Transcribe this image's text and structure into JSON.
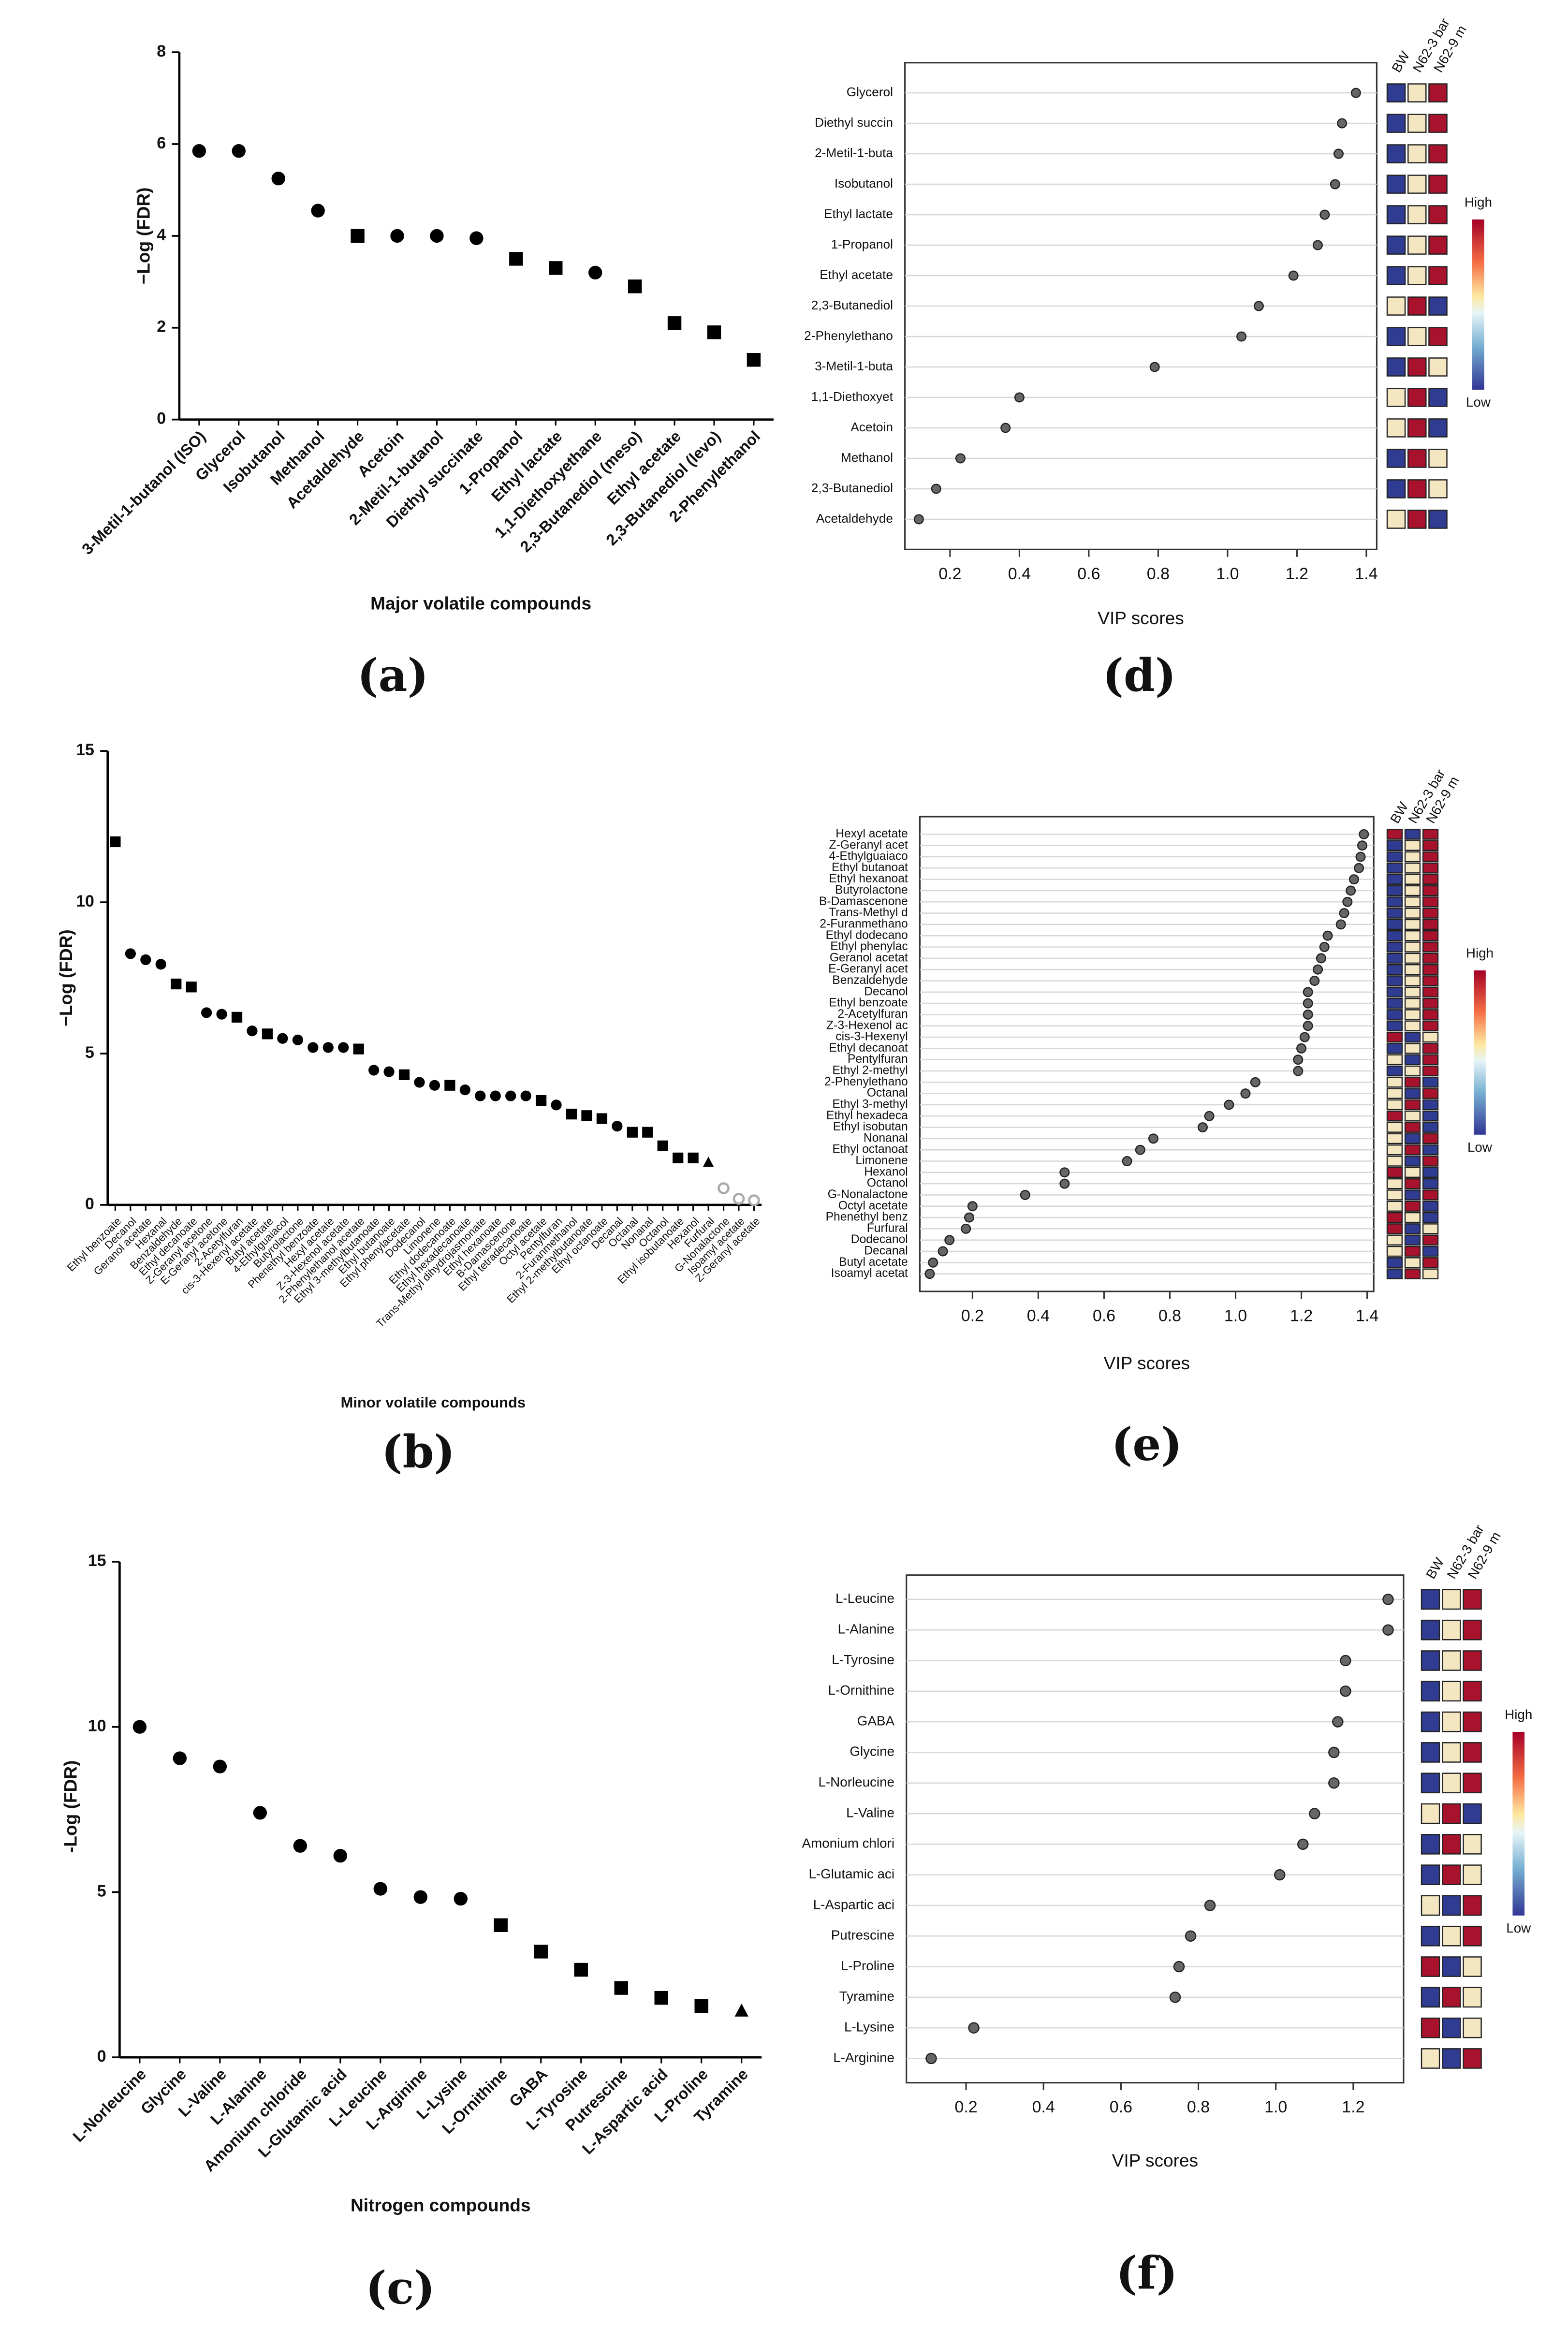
{
  "chart_data": [
    {
      "type": "scatter",
      "panel_label": "(a)",
      "ylabel": "−Log (FDR)",
      "xlabel": "Major volatile compounds",
      "color": "#000000",
      "categories": [
        "3-Metil-1-butanol (ISO)",
        "Glycerol",
        "Isobutanol",
        "Methanol",
        "Acetaldehyde",
        "Acetoin",
        "2-Metil-1-butanol",
        "Diethyl succinate",
        "1-Propanol",
        "Ethyl lactate",
        "1,1-Diethoxyethane",
        "2,3-Butanediol (meso)",
        "Ethyl acetate",
        "2,3-Butanediol (levo)",
        "2-Phenylethanol"
      ],
      "values": [
        5.85,
        5.85,
        5.25,
        4.55,
        4.0,
        4.0,
        4.0,
        3.95,
        3.5,
        3.3,
        3.2,
        2.9,
        2.1,
        1.9,
        1.3
      ],
      "markers": [
        "circle",
        "circle",
        "circle",
        "circle",
        "square",
        "circle",
        "circle",
        "circle",
        "square",
        "square",
        "circle",
        "square",
        "square",
        "square",
        "square"
      ],
      "ylim": [
        0,
        8
      ],
      "yticks": [
        0,
        2,
        4,
        6,
        8
      ]
    },
    {
      "type": "dotplot",
      "panel_label": "(d)",
      "xlabel": "VIP scores",
      "color": "#666666",
      "categories": [
        "Glycerol",
        "Diethyl succin",
        "2-Metil-1-buta",
        "Isobutanol",
        "Ethyl lactate",
        "1-Propanol",
        "Ethyl acetate",
        "2,3-Butanediol",
        "2-Phenylethano",
        "3-Metil-1-buta",
        "1,1-Diethoxyet",
        "Acetoin",
        "Methanol",
        "2,3-Butanediol",
        "Acetaldehyde"
      ],
      "values": [
        1.37,
        1.33,
        1.32,
        1.31,
        1.28,
        1.26,
        1.19,
        1.09,
        1.04,
        0.79,
        0.4,
        0.36,
        0.23,
        0.16,
        0.11
      ],
      "xlim": [
        0.07,
        1.43
      ],
      "xticks": [
        0.2,
        0.4,
        0.6,
        0.8,
        {
          "value": 1,
          "label": "1.0"
        },
        1.2,
        1.4
      ],
      "heat_columns": [
        "BW",
        "N62-3 bar",
        "N62-9 m"
      ],
      "palette": {
        "B": "#2f3c92",
        "Y": "#f3e6c1",
        "R": "#a9122c"
      },
      "heatmap": [
        "BYR",
        "BYR",
        "BYR",
        "BYR",
        "BYR",
        "BYR",
        "BYR",
        "YRB",
        "BYR",
        "BRY",
        "YRB",
        "YRB",
        "BRY",
        "BRY",
        "YRB"
      ],
      "colorbar_labels": [
        "High",
        "Low"
      ]
    },
    {
      "type": "scatter",
      "panel_label": "(b)",
      "ylabel": "−Log (FDR)",
      "xlabel": "Minor volatile compounds",
      "color": "#000000",
      "categories": [
        "Ethyl benzoate",
        "Decanol",
        "Geranol acetate",
        "Hexanal",
        "Benzaldehyde",
        "Ethyl decanoate",
        "Z-Geranyl acetone",
        "E-Geranyl acetone",
        "2-Acetylfuran",
        "cis-3-Hexenyl acetate",
        "Butyl acetate",
        "4-Ethylguaiacol",
        "Butyrolactone",
        "Phenethyl benzoate",
        "Hexyl acetate",
        "Z-3-Hexenol acetate",
        "2-Phenylethanol acetate",
        "Ethyl 3-methylbutanoate",
        "Ethyl butanoate",
        "Ethyl phenylacetate",
        "Dodecanol",
        "Limonene",
        "Ethyl dodecanoate",
        "Ethyl hexadecanoate",
        "Trans-Methyl dihydrojasmonate",
        "Ethyl hexanoate",
        "B-Damascenone",
        "Ethyl tetradecanoate",
        "Octyl acetate",
        "Pentylfuran",
        "2-Furanmethanol",
        "Ethyl 2-methylbutanoate",
        "Ethyl octanoate",
        "Decanal",
        "Octanal",
        "Nonanal",
        "Octanol",
        "Ethyl isobutanoate",
        "Hexanol",
        "Furfural",
        "G-Nonalactone",
        "Isoamyl acetate",
        "Z-Geranyl acetate"
      ],
      "values": [
        12.0,
        8.3,
        8.1,
        7.95,
        7.3,
        7.2,
        6.35,
        6.3,
        6.2,
        5.75,
        5.65,
        5.5,
        5.45,
        5.2,
        5.2,
        5.2,
        5.15,
        4.45,
        4.4,
        4.3,
        4.05,
        3.95,
        3.95,
        3.8,
        3.6,
        3.6,
        3.6,
        3.6,
        3.45,
        3.3,
        3.0,
        2.95,
        2.85,
        2.6,
        2.4,
        2.4,
        1.95,
        1.55,
        1.55,
        1.4,
        0.55,
        0.2,
        0.15
      ],
      "markers": [
        "square",
        "circle",
        "circle",
        "circle",
        "square",
        "square",
        "circle",
        "circle",
        "square",
        "circle",
        "square",
        "circle",
        "circle",
        "circle",
        "circle",
        "circle",
        "square",
        "circle",
        "circle",
        "square",
        "circle",
        "circle",
        "square",
        "circle",
        "circle",
        "circle",
        "circle",
        "circle",
        "square",
        "circle",
        "square",
        "square",
        "square",
        "circle",
        "square",
        "square",
        "square",
        "square",
        "square",
        "triangle",
        "open",
        "open",
        "open"
      ],
      "ylim": [
        0,
        15
      ],
      "yticks": [
        0,
        5,
        10,
        15
      ]
    },
    {
      "type": "dotplot",
      "panel_label": "(e)",
      "xlabel": "VIP scores",
      "color": "#666666",
      "categories": [
        "Hexyl acetate",
        "Z-Geranyl acet",
        "4-Ethylguaiaco",
        "Ethyl butanoat",
        "Ethyl hexanoat",
        "Butyrolactone",
        "B-Damascenone",
        "Trans-Methyl d",
        "2-Furanmethano",
        "Ethyl dodecano",
        "Ethyl phenylac",
        "Geranol acetat",
        "E-Geranyl acet",
        "Benzaldehyde",
        "Decanol",
        "Ethyl benzoate",
        "2-Acetylfuran",
        "Z-3-Hexenol ac",
        "cis-3-Hexenyl",
        "Ethyl decanoat",
        "Pentylfuran",
        "Ethyl 2-methyl",
        "2-Phenylethano",
        "Octanal",
        "Ethyl 3-methyl",
        "Ethyl hexadeca",
        "Ethyl isobutan",
        "Nonanal",
        "Ethyl octanoat",
        "Limonene",
        "Hexanol",
        "Octanol",
        "G-Nonalactone",
        "Octyl acetate",
        "Phenethyl benz",
        "Furfural",
        "Dodecanol",
        "Decanal",
        "Butyl acetate",
        "Isoamyl acetat"
      ],
      "values": [
        1.39,
        1.385,
        1.38,
        1.375,
        1.36,
        1.35,
        1.34,
        1.33,
        1.32,
        1.28,
        1.27,
        1.26,
        1.25,
        1.24,
        1.22,
        1.22,
        1.22,
        1.22,
        1.21,
        1.2,
        1.19,
        1.19,
        1.06,
        1.03,
        0.98,
        0.92,
        0.9,
        0.75,
        0.71,
        0.67,
        0.48,
        0.48,
        0.36,
        0.2,
        0.19,
        0.18,
        0.13,
        0.11,
        0.08,
        0.07
      ],
      "xlim": [
        0.04,
        1.42
      ],
      "xticks": [
        0.2,
        0.4,
        0.6,
        0.8,
        {
          "value": 1,
          "label": "1.0"
        },
        1.2,
        1.4
      ],
      "heat_columns": [
        "BW",
        "N62-3 bar",
        "N62-9 m"
      ],
      "palette": {
        "B": "#2f3c92",
        "Y": "#f3e6c1",
        "R": "#a9122c"
      },
      "heatmap": [
        "RBR",
        "BYR",
        "BYR",
        "BYR",
        "BYR",
        "BYR",
        "BYR",
        "BYR",
        "BYR",
        "BYR",
        "BYR",
        "BYR",
        "BYR",
        "BYR",
        "BYR",
        "BYR",
        "BYR",
        "BYR",
        "RBY",
        "BYR",
        "YBR",
        "BYR",
        "YRB",
        "YBR",
        "YRB",
        "RYB",
        "YRB",
        "YBR",
        "YRB",
        "YBR",
        "RYB",
        "YRB",
        "YBR",
        "YRB",
        "RYB",
        "RBY",
        "YBR",
        "YRB",
        "BYR",
        "BRY"
      ],
      "colorbar_labels": [
        "High",
        "Low"
      ]
    },
    {
      "type": "scatter",
      "panel_label": "(c)",
      "ylabel": "-Log (FDR)",
      "xlabel": "Nitrogen compounds",
      "color": "#000000",
      "categories": [
        "L-Norleucine",
        "Glycine",
        "L-Valine",
        "L-Alanine",
        "Amonium chloride",
        "L-Glutamic acid",
        "L-Leucine",
        "L-Arginine",
        "L-Lysine",
        "L-Ornithine",
        "GABA",
        "L-Tyrosine",
        "Putrescine",
        "L-Aspartic acid",
        "L-Proline",
        "Tyramine"
      ],
      "values": [
        10.0,
        9.05,
        8.8,
        7.4,
        6.4,
        6.1,
        5.1,
        4.85,
        4.8,
        4.0,
        3.2,
        2.65,
        2.1,
        1.8,
        1.55,
        1.4
      ],
      "markers": [
        "circle",
        "circle",
        "circle",
        "circle",
        "circle",
        "circle",
        "circle",
        "circle",
        "circle",
        "square",
        "square",
        "square",
        "square",
        "square",
        "square",
        "triangle"
      ],
      "ylim": [
        0,
        15
      ],
      "yticks": [
        0,
        5,
        10,
        15
      ]
    },
    {
      "type": "dotplot",
      "panel_label": "(f)",
      "xlabel": "VIP scores",
      "color": "#666666",
      "categories": [
        "L-Leucine",
        "L-Alanine",
        "L-Tyrosine",
        "L-Ornithine",
        "GABA",
        "Glycine",
        "L-Norleucine",
        "L-Valine",
        "Amonium chlori",
        "L-Glutamic aci",
        "L-Aspartic aci",
        "Putrescine",
        "L-Proline",
        "Tyramine",
        "L-Lysine",
        "L-Arginine"
      ],
      "values": [
        1.29,
        1.29,
        1.18,
        1.18,
        1.16,
        1.15,
        1.15,
        1.1,
        1.07,
        1.01,
        0.83,
        0.78,
        0.75,
        0.74,
        0.22,
        0.11
      ],
      "xlim": [
        0.046,
        1.33
      ],
      "xticks": [
        0.2,
        0.4,
        0.6,
        0.8,
        {
          "value": 1,
          "label": "1.0"
        },
        1.2
      ],
      "heat_columns": [
        "BW",
        "N62-3 bar",
        "N62-9 m"
      ],
      "palette": {
        "B": "#2f3c92",
        "Y": "#f3e6c1",
        "R": "#a9122c"
      },
      "heatmap": [
        "BYR",
        "BYR",
        "BYR",
        "BYR",
        "BYR",
        "BYR",
        "BYR",
        "YRB",
        "BRY",
        "BRY",
        "YBR",
        "BYR",
        "RBY",
        "BRY",
        "RBY",
        "YBR"
      ],
      "colorbar_labels": [
        "High",
        "Low"
      ]
    }
  ]
}
